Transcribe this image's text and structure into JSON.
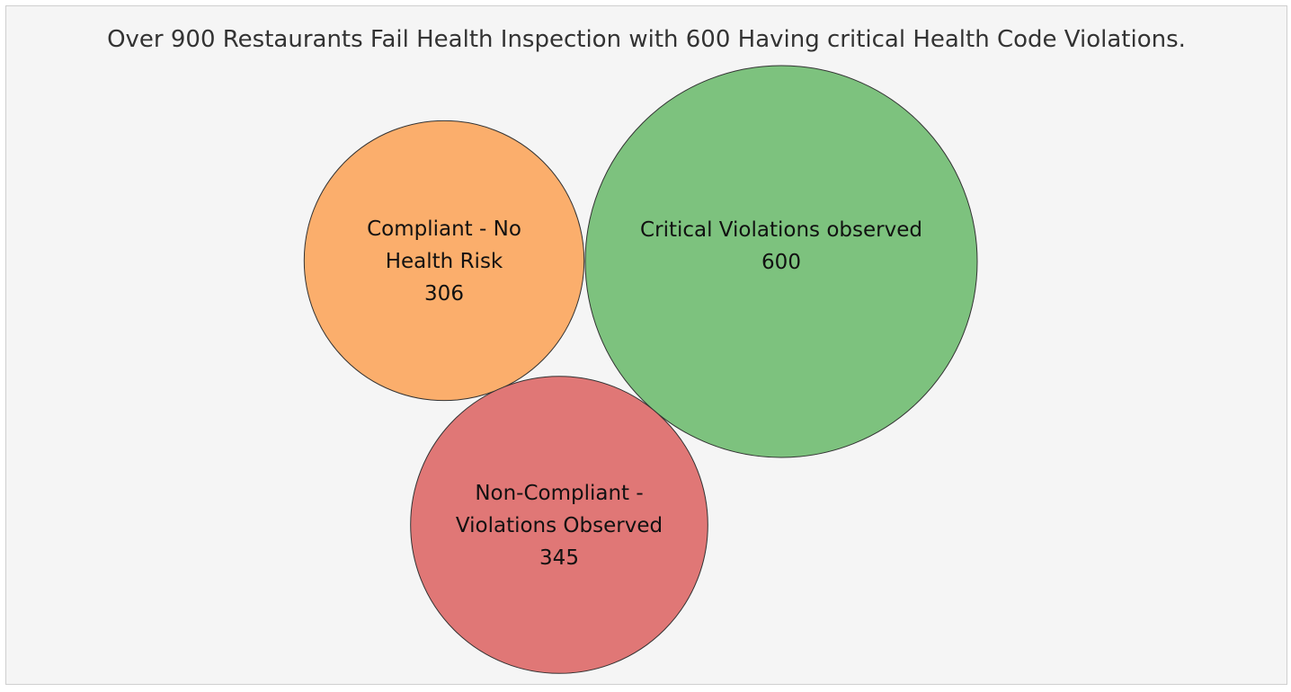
{
  "chart_data": {
    "type": "bubble",
    "title": "Over 900 Restaurants Fail Health Inspection with 600 Having critical Health Code Violations.",
    "bubbles": [
      {
        "label_lines": [
          "Compliant - No",
          "Health Risk"
        ],
        "value": 306,
        "color": "#fbae6c"
      },
      {
        "label_lines": [
          "Critical Violations observed"
        ],
        "value": 600,
        "color": "#7dc27e"
      },
      {
        "label_lines": [
          "Non-Compliant -",
          "Violations Observed"
        ],
        "value": 345,
        "color": "#e07776"
      }
    ]
  }
}
